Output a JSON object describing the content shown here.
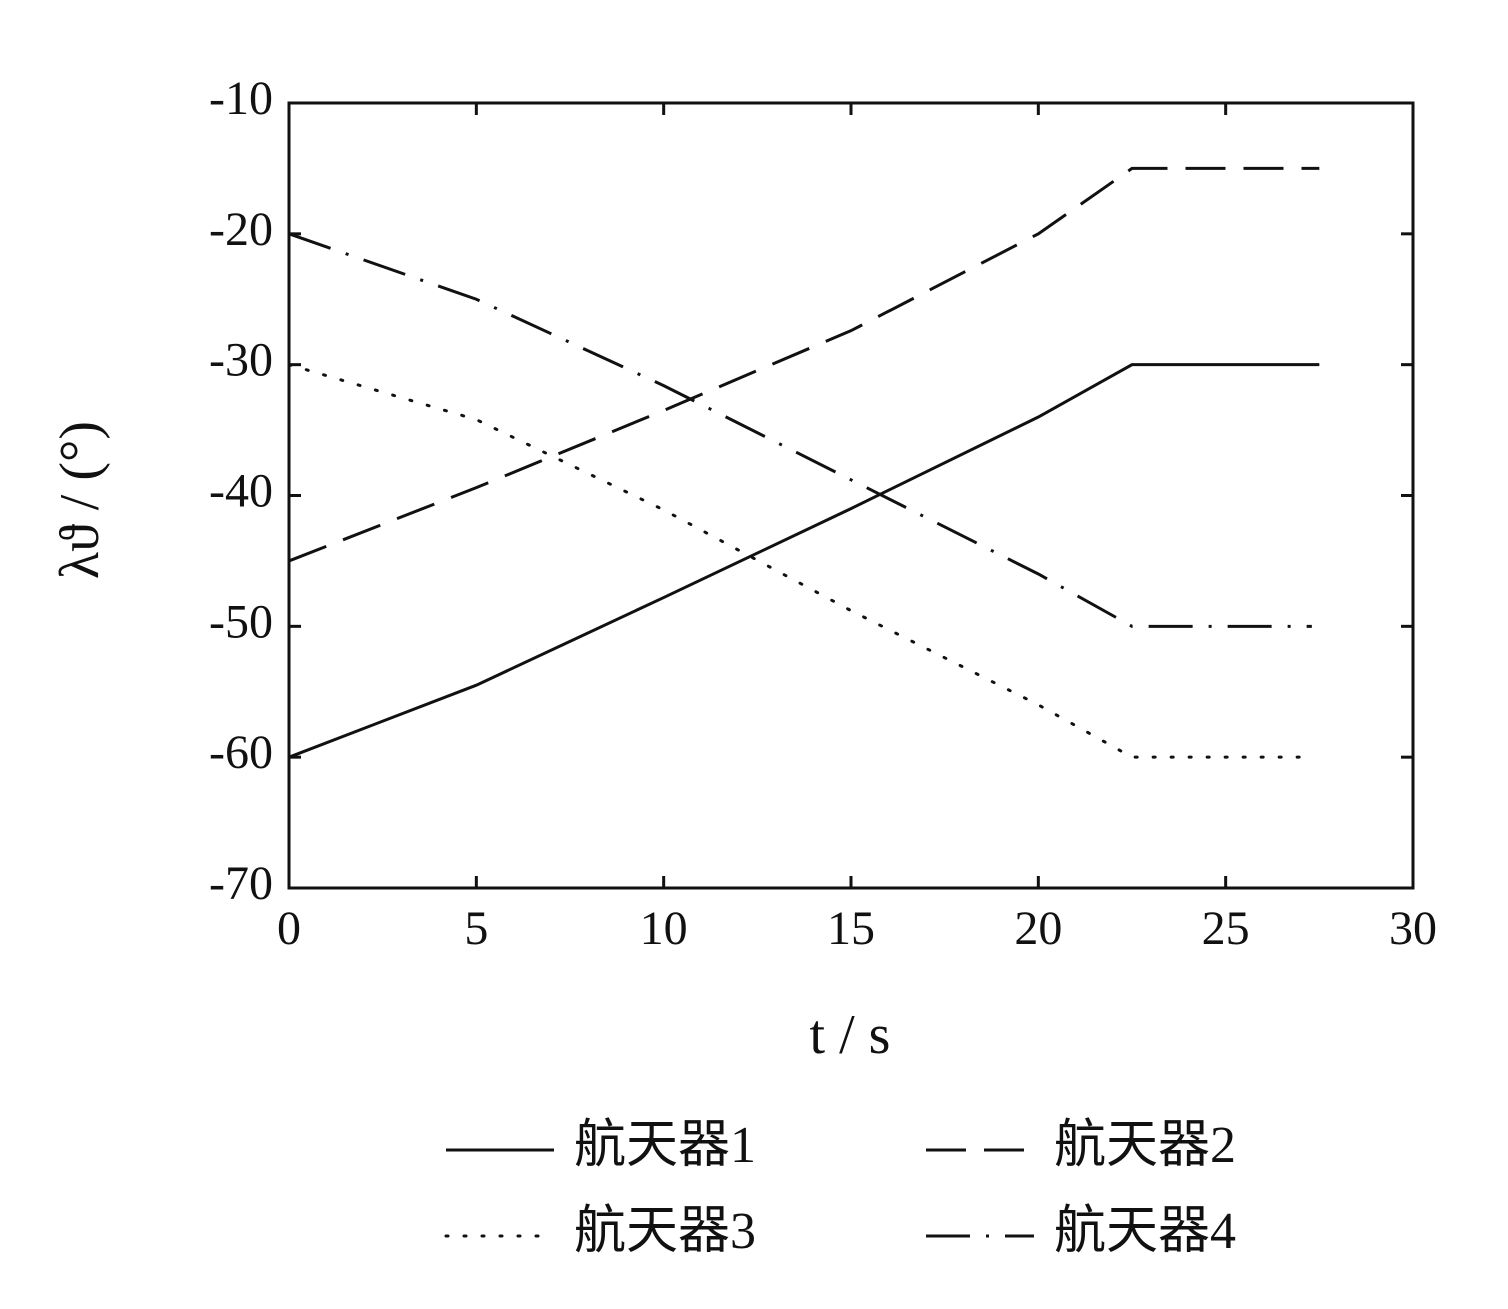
{
  "chart_data": {
    "type": "line",
    "xlabel": "t / s",
    "ylabel": "λϑ / (°)",
    "xlim": [
      0,
      30
    ],
    "xticks": [
      0,
      5,
      10,
      15,
      20,
      25,
      30
    ],
    "ylim": [
      -70,
      -10
    ],
    "yticks": [
      -70,
      -60,
      -50,
      -40,
      -30,
      -20,
      -10
    ],
    "series": [
      {
        "name": "航天器1",
        "color": "#111111",
        "dash": "solid",
        "x": [
          0,
          5,
          10,
          15,
          20,
          22.5,
          27.5
        ],
        "values": [
          -60,
          -54.5,
          -47.8,
          -41,
          -34,
          -30,
          -30
        ]
      },
      {
        "name": "航天器2",
        "color": "#111111",
        "dash": "dashed",
        "x": [
          0,
          5,
          10,
          15,
          20,
          22.5,
          27.5
        ],
        "values": [
          -45,
          -39.4,
          -33.5,
          -27.4,
          -20,
          -15,
          -15
        ]
      },
      {
        "name": "航天器3",
        "color": "#111111",
        "dash": "dotted",
        "x": [
          0,
          5,
          10,
          15,
          20,
          22.5,
          27
        ],
        "values": [
          -30,
          -34.2,
          -41.1,
          -48.8,
          -56,
          -60,
          -60
        ]
      },
      {
        "name": "航天器4",
        "color": "#111111",
        "dash": "dashdot",
        "x": [
          0,
          5,
          10,
          15,
          20,
          22.5,
          27.3
        ],
        "values": [
          -20,
          -25,
          -31.6,
          -38.8,
          -46,
          -50,
          -50
        ]
      }
    ]
  }
}
